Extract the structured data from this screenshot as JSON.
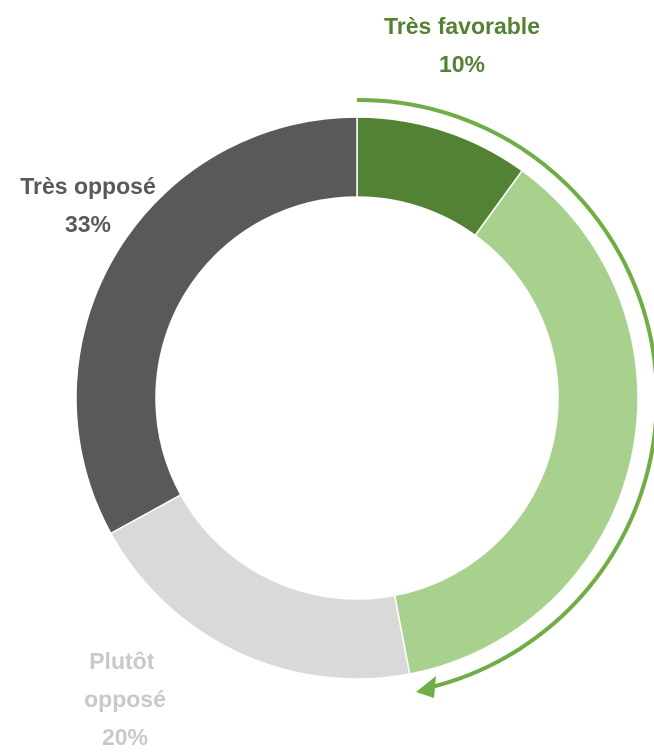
{
  "chart_data": {
    "type": "donut",
    "categories": [
      "Très favorable",
      null,
      "Plutôt opposé",
      "Très opposé"
    ],
    "values": [
      10,
      37,
      20,
      33
    ],
    "value_labels": [
      "10%",
      null,
      "20%",
      "33%"
    ],
    "colors": [
      "#548235",
      "#a9d18e",
      "#d9d9d9",
      "#595959"
    ],
    "label_colors": [
      "#548235",
      null,
      "#c9c9c9",
      "#595959"
    ]
  }
}
